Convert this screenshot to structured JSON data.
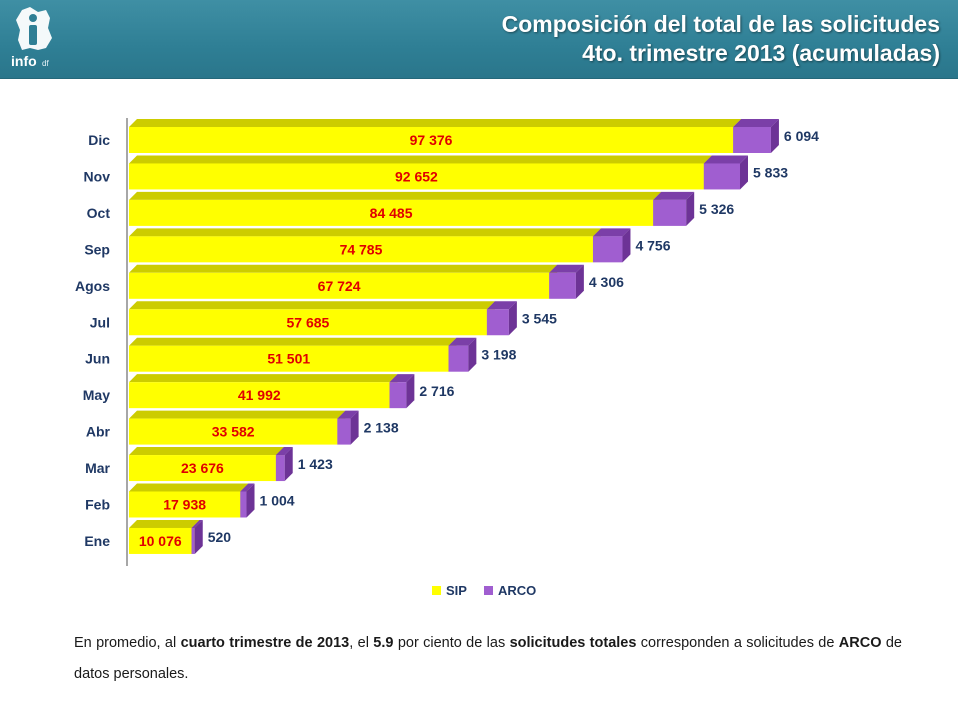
{
  "header": {
    "title_line1": "Composición del total de las solicitudes",
    "title_line2": "4to. trimestre 2013 (acumuladas)",
    "logo_text": "info",
    "logo_suffix": "df"
  },
  "colors": {
    "header_bg": "#2f7f95",
    "sip_front": "#ffff00",
    "sip_top": "#cccc00",
    "arco_front": "#a05ed0",
    "arco_top": "#7b3fa8",
    "sip_label": "#e00000",
    "arco_label": "#1f3864"
  },
  "chart_data": {
    "type": "bar",
    "orientation": "horizontal",
    "stacked": true,
    "style": "3d",
    "categories": [
      "Dic",
      "Nov",
      "Oct",
      "Sep",
      "Agos",
      "Jul",
      "Jun",
      "May",
      "Abr",
      "Mar",
      "Feb",
      "Ene"
    ],
    "series": [
      {
        "name": "SIP",
        "values": [
          97376,
          92652,
          84485,
          74785,
          67724,
          57685,
          51501,
          41992,
          33582,
          23676,
          17938,
          10076
        ],
        "labels": [
          "97 376",
          "92 652",
          "84 485",
          "74 785",
          "67 724",
          "57 685",
          "51 501",
          "41 992",
          "33 582",
          "23 676",
          "17 938",
          "10 076"
        ]
      },
      {
        "name": "ARCO",
        "values": [
          6094,
          5833,
          5326,
          4756,
          4306,
          3545,
          3198,
          2716,
          2138,
          1423,
          1004,
          520
        ],
        "labels": [
          "6 094",
          "5 833",
          "5 326",
          "4 756",
          "4 306",
          "3 545",
          "3 198",
          "2 716",
          "2 138",
          "1 423",
          "1 004",
          "520"
        ]
      }
    ],
    "legend": {
      "position": "bottom",
      "entries": [
        "SIP",
        "ARCO"
      ]
    },
    "grid": false
  },
  "footnote": {
    "t1": "En promedio, al ",
    "b1": "cuarto trimestre de 2013",
    "t2": ", el ",
    "b2": "5.9",
    "t3": " por ciento de las ",
    "b3": "solicitudes totales",
    "t4": " corresponden a solicitudes de ",
    "b4": "ARCO",
    "t5": " de datos personales."
  }
}
